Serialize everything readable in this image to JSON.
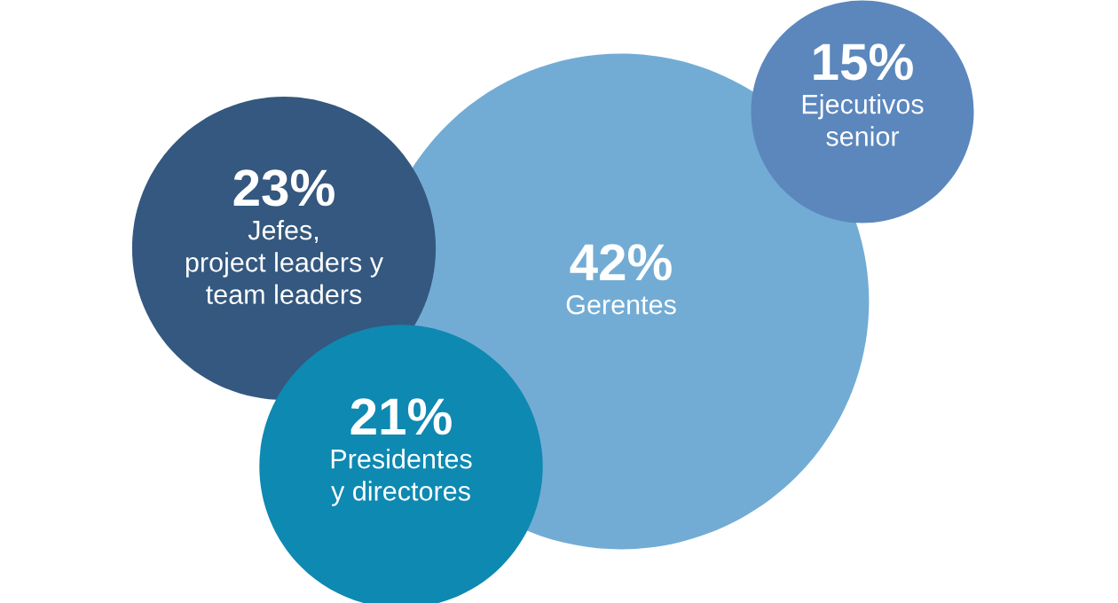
{
  "chart_data": {
    "type": "other",
    "categories": [
      "Gerentes",
      "Jefes,\nproject leaders y\nteam leaders",
      "Ejecutivos\nsenior",
      "Presidentes\ny directores"
    ],
    "values": [
      42,
      23,
      15,
      21
    ],
    "value_labels": [
      "42%",
      "23%",
      "15%",
      "21%"
    ],
    "colors": [
      "#72acd5",
      "#34587f",
      "#5b87bd",
      "#0e89b2"
    ]
  }
}
